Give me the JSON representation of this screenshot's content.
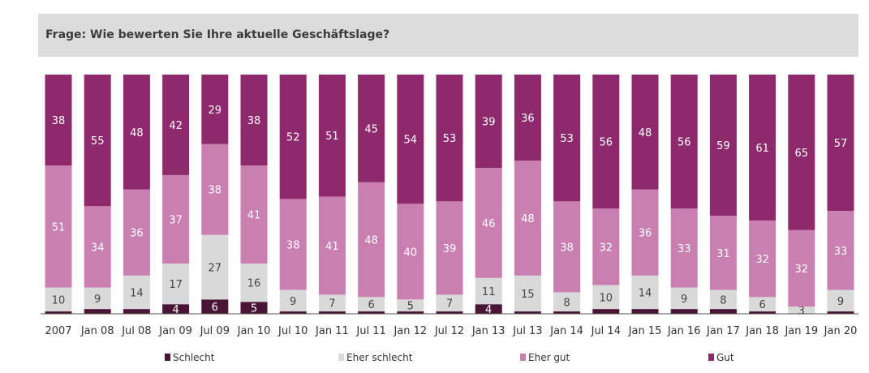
{
  "header": {
    "title": "Frage: Wie bewerten Sie Ihre aktuelle Geschäftslage?"
  },
  "chart_data": {
    "type": "bar",
    "stacked": true,
    "title": "",
    "xlabel": "",
    "ylabel": "",
    "ylim": [
      0,
      100
    ],
    "grid": false,
    "legend_position": "bottom",
    "categories": [
      "2007",
      "Jan 08",
      "Jul 08",
      "Jan 09",
      "Jul 09",
      "Jan 10",
      "Jul 10",
      "Jan 11",
      "Jul 11",
      "Jan 12",
      "Jul 12",
      "Jan 13",
      "Jul 13",
      "Jan 14",
      "Jul 14",
      "Jan 15",
      "Jan 16",
      "Jan 17",
      "Jan 18",
      "Jan 19",
      "Jan 20"
    ],
    "series": [
      {
        "name": "Schlecht",
        "color": "#4a1535",
        "label_color": "#ffffff",
        "values": [
          1,
          2,
          2,
          4,
          6,
          5,
          1,
          1,
          1,
          1,
          1,
          4,
          1,
          1,
          2,
          2,
          2,
          2,
          1,
          0,
          1
        ]
      },
      {
        "name": "Eher schlecht",
        "color": "#d9d9d9",
        "label_color": "#444444",
        "values": [
          10,
          9,
          14,
          17,
          27,
          16,
          9,
          7,
          6,
          5,
          7,
          11,
          15,
          8,
          10,
          14,
          9,
          8,
          6,
          3,
          9
        ]
      },
      {
        "name": "Eher gut",
        "color": "#c97fb0",
        "label_color": "#ffffff",
        "values": [
          51,
          34,
          36,
          37,
          38,
          41,
          38,
          41,
          48,
          40,
          39,
          46,
          48,
          38,
          32,
          36,
          33,
          31,
          32,
          32,
          33
        ]
      },
      {
        "name": "Gut",
        "color": "#8e2a6c",
        "label_color": "#ffffff",
        "values": [
          38,
          55,
          48,
          42,
          29,
          38,
          52,
          51,
          45,
          54,
          53,
          39,
          36,
          53,
          56,
          48,
          56,
          59,
          61,
          65,
          57
        ]
      }
    ]
  }
}
